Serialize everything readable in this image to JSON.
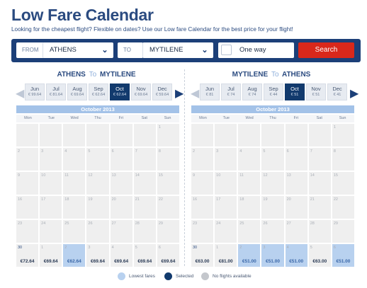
{
  "page": {
    "title": "Low Fare Calendar",
    "subtitle": "Looking for the cheapest flight? Flexible on dates? Use our Low fare Calendar for the best price for your flight!"
  },
  "search": {
    "from_label": "FROM",
    "from_value": "ATHENS",
    "to_label": "TO",
    "to_value": "MYTILENE",
    "one_way_label": "One way",
    "search_label": "Search"
  },
  "outbound": {
    "origin": "ATHENS",
    "to_word": "To",
    "destination": "MYTILENE",
    "months": [
      {
        "name": "Jun",
        "price": "€ 99.64"
      },
      {
        "name": "Jul",
        "price": "€ 81.64"
      },
      {
        "name": "Aug",
        "price": "€ 69.64"
      },
      {
        "name": "Sep",
        "price": "€ 62.64"
      },
      {
        "name": "Oct",
        "price": "€ 62.64",
        "selected": true
      },
      {
        "name": "Nov",
        "price": "€ 69.64"
      },
      {
        "name": "Dec",
        "price": "€ 59.64"
      }
    ],
    "calendar_title": "October 2013",
    "weekdays": [
      "Mon",
      "Tue",
      "Wed",
      "Thu",
      "Fri",
      "Sat",
      "Sun"
    ],
    "cells": [
      {
        "d": "",
        "p": ""
      },
      {
        "d": "",
        "p": ""
      },
      {
        "d": "",
        "p": ""
      },
      {
        "d": "",
        "p": ""
      },
      {
        "d": "",
        "p": ""
      },
      {
        "d": "",
        "p": ""
      },
      {
        "d": "1",
        "p": ""
      },
      {
        "d": "2",
        "p": ""
      },
      {
        "d": "3",
        "p": ""
      },
      {
        "d": "4",
        "p": ""
      },
      {
        "d": "5",
        "p": ""
      },
      {
        "d": "6",
        "p": ""
      },
      {
        "d": "7",
        "p": ""
      },
      {
        "d": "8",
        "p": ""
      },
      {
        "d": "9",
        "p": ""
      },
      {
        "d": "10",
        "p": ""
      },
      {
        "d": "11",
        "p": ""
      },
      {
        "d": "12",
        "p": ""
      },
      {
        "d": "13",
        "p": ""
      },
      {
        "d": "14",
        "p": ""
      },
      {
        "d": "15",
        "p": ""
      },
      {
        "d": "16",
        "p": ""
      },
      {
        "d": "17",
        "p": ""
      },
      {
        "d": "18",
        "p": ""
      },
      {
        "d": "19",
        "p": ""
      },
      {
        "d": "20",
        "p": ""
      },
      {
        "d": "21",
        "p": ""
      },
      {
        "d": "22",
        "p": ""
      },
      {
        "d": "23",
        "p": ""
      },
      {
        "d": "24",
        "p": ""
      },
      {
        "d": "25",
        "p": ""
      },
      {
        "d": "26",
        "p": ""
      },
      {
        "d": "27",
        "p": ""
      },
      {
        "d": "28",
        "p": ""
      },
      {
        "d": "29",
        "p": ""
      },
      {
        "d": "30",
        "p": "€72.64",
        "act": true
      },
      {
        "d": "1",
        "p": "€69.64"
      },
      {
        "d": "2",
        "p": "€62.64",
        "low": true
      },
      {
        "d": "3",
        "p": "€69.64"
      },
      {
        "d": "4",
        "p": "€69.64"
      },
      {
        "d": "5",
        "p": "€69.64"
      },
      {
        "d": "6",
        "p": "€69.64"
      }
    ]
  },
  "inbound": {
    "origin": "MYTILENE",
    "to_word": "To",
    "destination": "ATHENS",
    "months": [
      {
        "name": "Jun",
        "price": "€ 81"
      },
      {
        "name": "Jul",
        "price": "€ 74"
      },
      {
        "name": "Aug",
        "price": "€ 74"
      },
      {
        "name": "Sep",
        "price": "€ 44"
      },
      {
        "name": "Oct",
        "price": "€ 51",
        "selected": true
      },
      {
        "name": "Nov",
        "price": "€ 51"
      },
      {
        "name": "Dec",
        "price": "€ 41"
      }
    ],
    "calendar_title": "October 2013",
    "weekdays": [
      "Mon",
      "Tue",
      "Wed",
      "Thu",
      "Fri",
      "Sat",
      "Sun"
    ],
    "cells": [
      {
        "d": "",
        "p": ""
      },
      {
        "d": "",
        "p": ""
      },
      {
        "d": "",
        "p": ""
      },
      {
        "d": "",
        "p": ""
      },
      {
        "d": "",
        "p": ""
      },
      {
        "d": "",
        "p": ""
      },
      {
        "d": "1",
        "p": ""
      },
      {
        "d": "2",
        "p": ""
      },
      {
        "d": "3",
        "p": ""
      },
      {
        "d": "4",
        "p": ""
      },
      {
        "d": "5",
        "p": ""
      },
      {
        "d": "6",
        "p": ""
      },
      {
        "d": "7",
        "p": ""
      },
      {
        "d": "8",
        "p": ""
      },
      {
        "d": "9",
        "p": ""
      },
      {
        "d": "10",
        "p": ""
      },
      {
        "d": "11",
        "p": ""
      },
      {
        "d": "12",
        "p": ""
      },
      {
        "d": "13",
        "p": ""
      },
      {
        "d": "14",
        "p": ""
      },
      {
        "d": "15",
        "p": ""
      },
      {
        "d": "16",
        "p": ""
      },
      {
        "d": "17",
        "p": ""
      },
      {
        "d": "18",
        "p": ""
      },
      {
        "d": "19",
        "p": ""
      },
      {
        "d": "20",
        "p": ""
      },
      {
        "d": "21",
        "p": ""
      },
      {
        "d": "22",
        "p": ""
      },
      {
        "d": "23",
        "p": ""
      },
      {
        "d": "24",
        "p": ""
      },
      {
        "d": "25",
        "p": ""
      },
      {
        "d": "26",
        "p": ""
      },
      {
        "d": "27",
        "p": ""
      },
      {
        "d": "28",
        "p": ""
      },
      {
        "d": "29",
        "p": ""
      },
      {
        "d": "30",
        "p": "€63.00",
        "act": true
      },
      {
        "d": "1",
        "p": "€81.00"
      },
      {
        "d": "2",
        "p": "€51.00",
        "low": true
      },
      {
        "d": "3",
        "p": "€51.00",
        "low": true
      },
      {
        "d": "4",
        "p": "€51.00",
        "low": true
      },
      {
        "d": "5",
        "p": "€63.00"
      },
      {
        "d": "6",
        "p": "€51.00",
        "low": true
      }
    ]
  },
  "legend": {
    "lowest": "Lowest fares",
    "selected": "Selected",
    "none": "No flights available"
  },
  "colors": {
    "brand_blue": "#1c3f78",
    "search_red": "#d9281b",
    "lowest": "#b8d1ef",
    "selected": "#123a6d",
    "unavailable": "#c4c7cc"
  }
}
